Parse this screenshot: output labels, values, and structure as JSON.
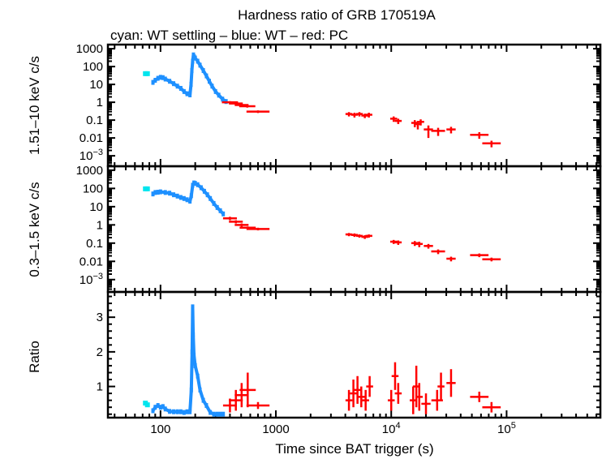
{
  "chart_data": {
    "type": "scatter",
    "title": "Hardness ratio of GRB 170519A",
    "subtitle": "cyan: WT settling – blue: WT – red: PC",
    "xlabel": "Time since BAT trigger (s)",
    "xscale": "log",
    "xlim": [
      35,
      650000
    ],
    "xticks": [
      {
        "v": 100,
        "base": "100",
        "exp": ""
      },
      {
        "v": 1000,
        "base": "1000",
        "exp": ""
      },
      {
        "v": 10000,
        "base": "10",
        "exp": "4"
      },
      {
        "v": 100000,
        "base": "10",
        "exp": "5"
      }
    ],
    "colors": {
      "cyan": "#00e5ee",
      "blue": "#1e90ff",
      "red": "#ff0000"
    },
    "panels": [
      {
        "ylabel": "1.51–10 keV c/s",
        "yscale": "log",
        "ylim": [
          0.00026,
          1700
        ],
        "yticks": [
          {
            "v": 1000,
            "base": "1000",
            "exp": ""
          },
          {
            "v": 100,
            "base": "100",
            "exp": ""
          },
          {
            "v": 10,
            "base": "10",
            "exp": ""
          },
          {
            "v": 1,
            "base": "1",
            "exp": ""
          },
          {
            "v": 0.1,
            "base": "0.1",
            "exp": ""
          },
          {
            "v": 0.01,
            "base": "0.01",
            "exp": ""
          },
          {
            "v": 0.001,
            "base": "10",
            "exp": "−3"
          }
        ],
        "cyan": [
          [
            74,
            40
          ],
          [
            77,
            40
          ]
        ],
        "blue": [
          [
            86,
            13
          ],
          [
            90,
            17
          ],
          [
            95,
            22
          ],
          [
            100,
            25
          ],
          [
            105,
            24
          ],
          [
            110,
            20
          ],
          [
            120,
            15
          ],
          [
            130,
            11
          ],
          [
            140,
            8
          ],
          [
            150,
            6
          ],
          [
            160,
            4
          ],
          [
            170,
            3
          ],
          [
            180,
            2.6
          ],
          [
            184,
            10
          ],
          [
            187,
            60
          ],
          [
            190,
            200
          ],
          [
            193,
            450
          ],
          [
            196,
            350
          ],
          [
            200,
            300
          ],
          [
            210,
            200
          ],
          [
            220,
            120
          ],
          [
            235,
            60
          ],
          [
            250,
            30
          ],
          [
            265,
            15
          ],
          [
            280,
            8
          ],
          [
            300,
            4
          ],
          [
            320,
            2.5
          ],
          [
            345,
            1.5
          ],
          [
            370,
            1.1
          ]
        ],
        "red": [
          [
            400,
            1.0,
            0.07,
            0.15
          ],
          [
            450,
            0.85,
            0.06,
            0.12
          ],
          [
            505,
            0.7,
            0.06,
            0.1
          ],
          [
            565,
            0.6,
            0.07,
            0.1
          ],
          [
            700,
            0.3,
            0.1,
            0.05
          ],
          [
            4300,
            0.22,
            0.03,
            0.06
          ],
          [
            4800,
            0.2,
            0.03,
            0.06
          ],
          [
            5300,
            0.22,
            0.03,
            0.06
          ],
          [
            5900,
            0.18,
            0.03,
            0.05
          ],
          [
            6400,
            0.2,
            0.03,
            0.06
          ],
          [
            10500,
            0.12,
            0.03,
            0.04
          ],
          [
            11500,
            0.09,
            0.03,
            0.03
          ],
          [
            16000,
            0.07,
            0.03,
            0.03
          ],
          [
            17000,
            0.06,
            0.03,
            0.03
          ],
          [
            18000,
            0.08,
            0.03,
            0.03
          ],
          [
            21000,
            0.03,
            0.04,
            0.02
          ],
          [
            25500,
            0.025,
            0.06,
            0.012
          ],
          [
            33000,
            0.03,
            0.04,
            0.012
          ],
          [
            58000,
            0.015,
            0.08,
            0.006
          ],
          [
            74000,
            0.005,
            0.08,
            0.002
          ]
        ]
      },
      {
        "ylabel": "0.3–1.5 keV c/s",
        "yscale": "log",
        "ylim": [
          0.00021,
          1650
        ],
        "yticks": [
          {
            "v": 1000,
            "base": "1000",
            "exp": ""
          },
          {
            "v": 100,
            "base": "100",
            "exp": ""
          },
          {
            "v": 10,
            "base": "10",
            "exp": ""
          },
          {
            "v": 1,
            "base": "1",
            "exp": ""
          },
          {
            "v": 0.1,
            "base": "0.1",
            "exp": ""
          },
          {
            "v": 0.01,
            "base": "0.01",
            "exp": ""
          },
          {
            "v": 0.001,
            "base": "10",
            "exp": "−3"
          }
        ],
        "cyan": [
          [
            74,
            95
          ],
          [
            77,
            95
          ]
        ],
        "blue": [
          [
            86,
            50
          ],
          [
            90,
            60
          ],
          [
            95,
            62
          ],
          [
            100,
            65
          ],
          [
            110,
            60
          ],
          [
            120,
            55
          ],
          [
            130,
            45
          ],
          [
            140,
            38
          ],
          [
            150,
            32
          ],
          [
            160,
            28
          ],
          [
            170,
            24
          ],
          [
            180,
            20
          ],
          [
            185,
            40
          ],
          [
            190,
            150
          ],
          [
            195,
            200
          ],
          [
            200,
            190
          ],
          [
            210,
            160
          ],
          [
            225,
            110
          ],
          [
            240,
            70
          ],
          [
            255,
            45
          ],
          [
            270,
            28
          ],
          [
            290,
            15
          ],
          [
            310,
            9
          ],
          [
            330,
            6
          ],
          [
            350,
            4
          ]
        ],
        "red": [
          [
            400,
            2.3,
            0.06,
            0.5
          ],
          [
            450,
            1.5,
            0.06,
            0.3
          ],
          [
            505,
            1.0,
            0.06,
            0.2
          ],
          [
            570,
            0.7,
            0.07,
            0.12
          ],
          [
            700,
            0.6,
            0.1,
            0.1
          ],
          [
            4300,
            0.3,
            0.03,
            0.06
          ],
          [
            4800,
            0.28,
            0.03,
            0.06
          ],
          [
            5300,
            0.25,
            0.03,
            0.05
          ],
          [
            5900,
            0.22,
            0.03,
            0.05
          ],
          [
            6400,
            0.25,
            0.03,
            0.05
          ],
          [
            10500,
            0.12,
            0.03,
            0.03
          ],
          [
            11500,
            0.11,
            0.03,
            0.03
          ],
          [
            16000,
            0.1,
            0.03,
            0.03
          ],
          [
            17500,
            0.09,
            0.03,
            0.03
          ],
          [
            21000,
            0.07,
            0.04,
            0.02
          ],
          [
            25500,
            0.035,
            0.06,
            0.01
          ],
          [
            33000,
            0.014,
            0.04,
            0.004
          ],
          [
            58000,
            0.022,
            0.08,
            0.005
          ],
          [
            74000,
            0.013,
            0.08,
            0.003
          ]
        ]
      },
      {
        "ylabel": "Ratio",
        "yscale": "linear",
        "ylim": [
          0.1,
          3.73
        ],
        "yticks": [
          {
            "v": 1,
            "base": "1",
            "exp": ""
          },
          {
            "v": 2,
            "base": "2",
            "exp": ""
          },
          {
            "v": 3,
            "base": "3",
            "exp": ""
          }
        ],
        "cyan": [
          [
            74,
            0.52
          ],
          [
            77,
            0.47
          ]
        ],
        "blue": [
          [
            86,
            0.3
          ],
          [
            90,
            0.4
          ],
          [
            95,
            0.45
          ],
          [
            100,
            0.4
          ],
          [
            105,
            0.42
          ],
          [
            110,
            0.35
          ],
          [
            120,
            0.28
          ],
          [
            130,
            0.27
          ],
          [
            140,
            0.27
          ],
          [
            150,
            0.27
          ],
          [
            160,
            0.25
          ],
          [
            170,
            0.27
          ],
          [
            180,
            0.27
          ],
          [
            185,
            0.9
          ],
          [
            188,
            2.0
          ],
          [
            190,
            3.3
          ],
          [
            192,
            2.5
          ],
          [
            195,
            1.9
          ],
          [
            200,
            1.6
          ],
          [
            210,
            1.3
          ],
          [
            220,
            0.9
          ],
          [
            235,
            0.6
          ],
          [
            250,
            0.45
          ],
          [
            270,
            0.25
          ],
          [
            290,
            0.2
          ],
          [
            310,
            0.2
          ],
          [
            330,
            0.2
          ],
          [
            350,
            0.2
          ]
        ],
        "red": [
          [
            400,
            0.45,
            0.06,
            0.2
          ],
          [
            450,
            0.6,
            0.06,
            0.3
          ],
          [
            505,
            0.75,
            0.06,
            0.35
          ],
          [
            570,
            0.9,
            0.07,
            0.5
          ],
          [
            700,
            0.45,
            0.1,
            0.1
          ],
          [
            4300,
            0.6,
            0.03,
            0.3
          ],
          [
            4700,
            0.8,
            0.03,
            0.4
          ],
          [
            5100,
            0.9,
            0.03,
            0.4
          ],
          [
            5500,
            0.7,
            0.03,
            0.3
          ],
          [
            6000,
            0.6,
            0.03,
            0.3
          ],
          [
            6500,
            1.0,
            0.03,
            0.3
          ],
          [
            10000,
            0.6,
            0.03,
            0.3
          ],
          [
            10800,
            1.3,
            0.03,
            0.4
          ],
          [
            11500,
            0.8,
            0.03,
            0.3
          ],
          [
            15500,
            0.6,
            0.03,
            0.4
          ],
          [
            16500,
            1.0,
            0.03,
            0.6
          ],
          [
            17500,
            0.7,
            0.03,
            0.4
          ],
          [
            20000,
            0.5,
            0.04,
            0.3
          ],
          [
            25000,
            0.6,
            0.05,
            0.3
          ],
          [
            27000,
            1.0,
            0.03,
            0.4
          ],
          [
            33000,
            1.1,
            0.04,
            0.4
          ],
          [
            58000,
            0.7,
            0.08,
            0.15
          ],
          [
            74000,
            0.4,
            0.08,
            0.15
          ]
        ]
      }
    ]
  }
}
